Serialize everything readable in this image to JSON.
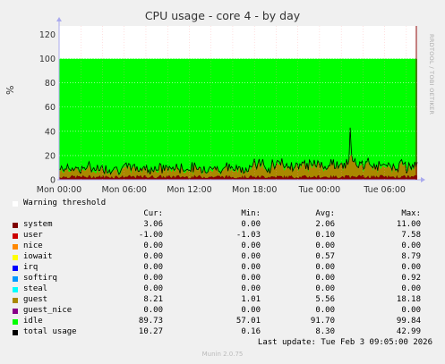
{
  "title": "CPU usage - core 4 - by day",
  "side_text": "RRDTOOL / TOBI OETIKER",
  "chart_data": {
    "type": "area",
    "title": "CPU usage - core 4 - by day",
    "ylabel": "%",
    "ylim": [
      0,
      127
    ],
    "yticks": [
      0,
      20,
      40,
      60,
      80,
      100,
      120
    ],
    "xticks": [
      "Mon 00:00",
      "Mon 06:00",
      "Mon 12:00",
      "Mon 18:00",
      "Tue 00:00",
      "Tue 06:00"
    ],
    "grid": true,
    "stacked_max": 100,
    "series": [
      {
        "name": "system",
        "color": "#880000",
        "mean": 2.06,
        "max": 11.0
      },
      {
        "name": "guest",
        "color": "#aa8800",
        "mean": 5.56,
        "max": 18.18
      },
      {
        "name": "idle",
        "color": "#00ff00",
        "mean": 91.7
      },
      {
        "name": "total usage",
        "color": "#000000",
        "mean": 8.3,
        "max": 42.99
      }
    ]
  },
  "legend": {
    "warning_label": "Warning threshold",
    "headers": {
      "cur": "Cur:",
      "min": "Min:",
      "avg": "Avg:",
      "max": "Max:"
    },
    "rows": [
      {
        "name": "system",
        "color": "#7f0000",
        "cur": "3.06",
        "min": "0.00",
        "avg": "2.06",
        "max": "11.00"
      },
      {
        "name": "user",
        "color": "#cc0000",
        "cur": "-1.00",
        "min": "-1.03",
        "avg": "0.10",
        "max": "7.58"
      },
      {
        "name": "nice",
        "color": "#ff8800",
        "cur": "0.00",
        "min": "0.00",
        "avg": "0.00",
        "max": "0.00"
      },
      {
        "name": "iowait",
        "color": "#ffff00",
        "cur": "0.00",
        "min": "0.00",
        "avg": "0.57",
        "max": "8.79"
      },
      {
        "name": "irq",
        "color": "#0000ff",
        "cur": "0.00",
        "min": "0.00",
        "avg": "0.00",
        "max": "0.00"
      },
      {
        "name": "softirq",
        "color": "#0099ff",
        "cur": "0.00",
        "min": "0.00",
        "avg": "0.00",
        "max": "0.92"
      },
      {
        "name": "steal",
        "color": "#00ffff",
        "cur": "0.00",
        "min": "0.00",
        "avg": "0.00",
        "max": "0.00"
      },
      {
        "name": "guest",
        "color": "#aa8800",
        "cur": "8.21",
        "min": "1.01",
        "avg": "5.56",
        "max": "18.18"
      },
      {
        "name": "guest_nice",
        "color": "#880088",
        "cur": "0.00",
        "min": "0.00",
        "avg": "0.00",
        "max": "0.00"
      },
      {
        "name": "idle",
        "color": "#00ff00",
        "cur": "89.73",
        "min": "57.01",
        "avg": "91.70",
        "max": "99.84"
      },
      {
        "name": "total usage",
        "color": "#000000",
        "cur": "10.27",
        "min": "0.16",
        "avg": "8.30",
        "max": "42.99"
      }
    ]
  },
  "last_update": "Last update: Tue Feb  3 09:05:00 2026",
  "munin_version": "Munin 2.0.75"
}
